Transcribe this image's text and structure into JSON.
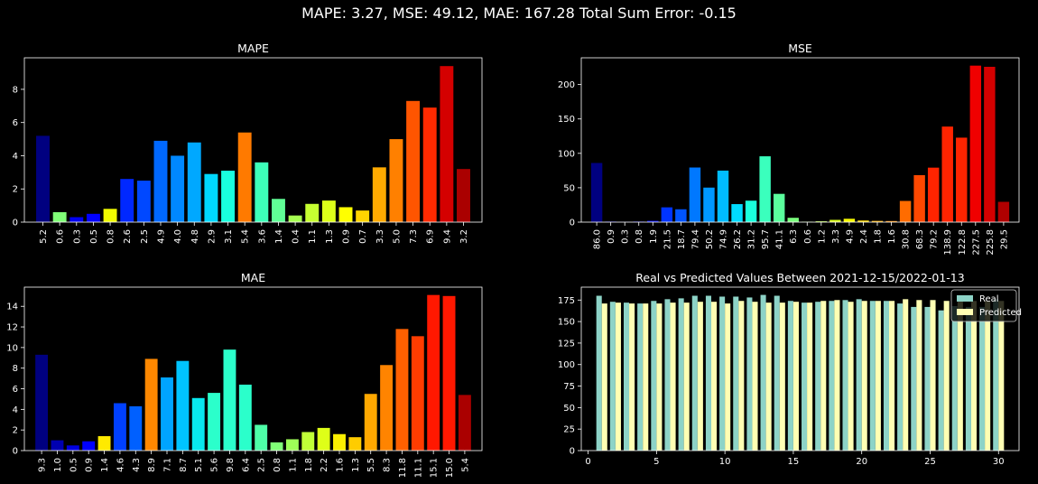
{
  "suptitle": "MAPE: 3.27, MSE: 49.12, MAE: 167.28 Total Sum Error: -0.15",
  "chart_data": [
    {
      "type": "bar",
      "title": "MAPE",
      "categories": [
        "5.2",
        "0.6",
        "0.3",
        "0.5",
        "0.8",
        "2.6",
        "2.5",
        "4.9",
        "4.0",
        "4.8",
        "2.9",
        "3.1",
        "5.4",
        "3.6",
        "1.4",
        "0.4",
        "1.1",
        "1.3",
        "0.9",
        "0.7",
        "3.3",
        "5.0",
        "7.3",
        "6.9",
        "9.4",
        "3.2"
      ],
      "values": [
        5.2,
        0.6,
        0.3,
        0.5,
        0.8,
        2.6,
        2.5,
        4.9,
        4.0,
        4.8,
        2.9,
        3.1,
        5.4,
        3.6,
        1.4,
        0.4,
        1.1,
        1.3,
        0.9,
        0.7,
        3.3,
        5.0,
        7.3,
        6.9,
        9.4,
        3.2
      ],
      "colors": [
        "#000080",
        "#80ff77",
        "#0000f1",
        "#0000ff",
        "#f1fc00",
        "#0028ff",
        "#0048ff",
        "#0068ff",
        "#0088ff",
        "#00a8ff",
        "#00d8ff",
        "#19ffde",
        "#ff7a00",
        "#3dffb9",
        "#60ff96",
        "#a6ff51",
        "#c6ff31",
        "#ddff19",
        "#ffff00",
        "#ffd400",
        "#ffaa00",
        "#ff8000",
        "#ff5500",
        "#ff2a00",
        "#d40000",
        "#aa0000"
      ],
      "ylim": [
        0,
        9.9
      ],
      "yticks": [
        0,
        2,
        4,
        6,
        8
      ]
    },
    {
      "type": "bar",
      "title": "MSE",
      "categories": [
        "86.0",
        "0.9",
        "0.3",
        "0.8",
        "1.9",
        "21.5",
        "18.7",
        "79.4",
        "50.2",
        "74.9",
        "26.2",
        "31.2",
        "95.7",
        "41.1",
        "6.3",
        "0.6",
        "1.2",
        "3.3",
        "4.9",
        "2.4",
        "1.8",
        "1.6",
        "30.8",
        "68.3",
        "79.2",
        "138.9",
        "122.8",
        "227.5",
        "225.8",
        "29.5"
      ],
      "values": [
        86.0,
        0.9,
        0.3,
        0.8,
        1.9,
        21.5,
        18.7,
        79.4,
        50.2,
        74.9,
        26.2,
        31.2,
        95.7,
        41.1,
        6.3,
        0.6,
        1.2,
        3.3,
        4.9,
        2.4,
        1.8,
        1.6,
        30.8,
        68.3,
        79.2,
        138.9,
        122.8,
        227.5,
        225.8,
        29.5
      ],
      "colors": [
        "#000080",
        "#0000a4",
        "#0000c8",
        "#0000ed",
        "#0010ff",
        "#0034ff",
        "#0054ff",
        "#0078ff",
        "#0098ff",
        "#00bcff",
        "#00dcff",
        "#1affdd",
        "#3affbd",
        "#5aff9d",
        "#7aff7d",
        "#9aff5d",
        "#baff3d",
        "#daff1d",
        "#f6f902",
        "#ffd800",
        "#ffb400",
        "#ff9000",
        "#ff6c00",
        "#ff4800",
        "#ff2400",
        "#ff2400",
        "#ff2400",
        "#f00000",
        "#d40000",
        "#b00000"
      ],
      "ylim": [
        0,
        238.9
      ],
      "yticks": [
        0,
        50,
        100,
        150,
        200
      ]
    },
    {
      "type": "bar",
      "title": "MAE",
      "categories": [
        "9.3",
        "1.0",
        "0.5",
        "0.9",
        "1.4",
        "4.6",
        "4.3",
        "8.9",
        "7.1",
        "8.7",
        "5.1",
        "5.6",
        "9.8",
        "6.4",
        "2.5",
        "0.8",
        "1.1",
        "1.8",
        "2.2",
        "1.6",
        "1.3",
        "5.5",
        "8.3",
        "11.8",
        "11.1",
        "15.1",
        "15.0",
        "5.4"
      ],
      "values": [
        9.3,
        1.0,
        0.5,
        0.9,
        1.4,
        4.6,
        4.3,
        8.9,
        7.1,
        8.7,
        5.1,
        5.6,
        9.8,
        6.4,
        2.5,
        0.8,
        1.1,
        1.8,
        2.2,
        1.6,
        1.3,
        5.5,
        8.3,
        11.8,
        11.1,
        15.1,
        15.0,
        5.4
      ],
      "colors": [
        "#000080",
        "#0000b0",
        "#0000e0",
        "#0000ff",
        "#ffea00",
        "#0040ff",
        "#0060ff",
        "#ff8800",
        "#00a4ff",
        "#00c4ff",
        "#08e8ee",
        "#2bffcb",
        "#2bffcb",
        "#2bffcb",
        "#4eff a8",
        "#80ff77",
        "#9eff58",
        "#c0ff37",
        "#deff18",
        "#fcf000",
        "#ffcc00",
        "#ffa800",
        "#ff8400",
        "#ff6000",
        "#ff3c00",
        "#ff1800",
        "#ff1800",
        "#aa0000"
      ],
      "ylim": [
        0,
        15.86
      ],
      "yticks": [
        0,
        2,
        4,
        6,
        8,
        10,
        12,
        14
      ]
    },
    {
      "type": "bar",
      "title": "Real vs Predicted Values Between 2021-12-15/2022-01-13",
      "x": [
        1,
        2,
        3,
        4,
        5,
        6,
        7,
        8,
        9,
        10,
        11,
        12,
        13,
        14,
        15,
        16,
        17,
        18,
        19,
        20,
        21,
        22,
        23,
        24,
        25,
        26,
        27,
        28,
        29,
        30
      ],
      "series": [
        {
          "name": "Real",
          "color": "#8dd3c7",
          "values": [
            180,
            173,
            172,
            171,
            174,
            176,
            177,
            180,
            180,
            179,
            179,
            178,
            181,
            180,
            174,
            172,
            173,
            174,
            175,
            176,
            174,
            174,
            171,
            167,
            167,
            163,
            168,
            167,
            167,
            176
          ]
        },
        {
          "name": "Predicted",
          "color": "#ffffb3",
          "values": [
            171,
            172,
            171,
            171,
            171,
            172,
            172,
            173,
            173,
            171,
            174,
            173,
            172,
            172,
            173,
            172,
            174,
            175,
            173,
            174,
            174,
            174,
            176,
            175,
            175,
            174,
            174,
            174,
            174,
            174
          ]
        }
      ],
      "xlim": [
        -0.5,
        31.5
      ],
      "ylim": [
        0,
        190
      ],
      "xticks": [
        0,
        5,
        10,
        15,
        20,
        25,
        30
      ],
      "yticks": [
        0,
        25,
        50,
        75,
        100,
        125,
        150,
        175
      ],
      "legend": "upper-right"
    }
  ]
}
